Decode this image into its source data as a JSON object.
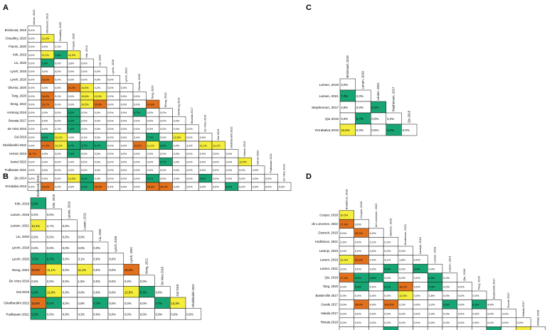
{
  "colors": {
    "green": "#17a673",
    "yellow": "#f5ee3e",
    "orange": "#e2711d",
    "white": "#ffffff"
  },
  "panels": [
    {
      "letter": "A",
      "rows": [
        "Bricknood, 2019",
        "Choudhry, 2020",
        "Fraenn, 2020",
        "Kirk, 2019",
        "Liu, 2020",
        "Lynch, 2018",
        "Lynch, 2020",
        "Oliveira, 2020",
        "Tang, 2020",
        "Wong, 2022",
        "Armitong 2019",
        "Bravata 2017",
        "De Vries 2016",
        "Gal 2019",
        "Ghahfarokhi 2022",
        "Heinen 2019",
        "Kamel 2022",
        "Pudkasam 2021",
        "Qiu 2014",
        "Yerrakalva 2019"
      ],
      "cols": [
        "Ashae, 2022",
        "Bricknood, 2019",
        "Choudhry, 2020",
        "Fraenn, 2020",
        "Kirk, 2019",
        "Liu, 2020",
        "Lynch, 2018",
        "Lynch, 2020",
        "Oliveira, 2020",
        "Tang, 2020",
        "Wong, 2022",
        "Armitong 2019",
        "Bravata 2017",
        "De Vries 2016",
        "Gal 2019",
        "Ghahfarokhi 2022",
        "Heinen 2019",
        "Kamel 2022",
        "Pudkasam 2021",
        "De Vries 2016"
      ],
      "cells": [
        [
          "0,0%"
        ],
        [
          "0,0%",
          "13,3%"
        ],
        [
          "0,0%",
          "0,0%",
          "2,1%"
        ],
        [
          "0,0%",
          "11,1%",
          "7,5%",
          "10,3%"
        ],
        [
          "0,0%",
          "5,9%",
          "0,0%",
          "3,8%",
          "0,0%"
        ],
        [
          "0,0%",
          "0,0%",
          "0,0%",
          "0,0%",
          "0,0%",
          "0,0%"
        ],
        [
          "0,0%",
          "18,2%",
          "0,0%",
          "0,0%",
          "0,0%",
          "0,0%",
          "0,0%"
        ],
        [
          "0,0%",
          "3,0%",
          "4,5%",
          "20,0%",
          "10,8%",
          "4,2%",
          "0,0%",
          "0,0%"
        ],
        [
          "0,0%",
          "18,0%",
          "5,1%",
          "0,0%",
          "10,6%",
          "11,5%",
          "0,0%",
          "0,0%",
          "0,0%"
        ],
        [
          "0,0%",
          "16,7%",
          "0,0%",
          "0,0%",
          "10,5%",
          "20,0%",
          "0,0%",
          "0,0%",
          "0,0%",
          "20,0%"
        ],
        [
          "0,0%",
          "0,0%",
          "0,0%",
          "5,3%",
          "0,0%",
          "0,0%",
          "0,0%",
          "0,0%",
          "5,7%",
          "0,0%",
          "0,0%"
        ],
        [
          "0,0%",
          "0,0%",
          "0,0%",
          "5,3%",
          "0,0%",
          "0,0%",
          "0,0%",
          "0,0%",
          "0,0%",
          "0,0%",
          "0,0%",
          "0,0%"
        ],
        [
          "0,0%",
          "0,0%",
          "2,1%",
          "7,0%",
          "0,0%",
          "0,0%",
          "0,0%",
          "0,0%",
          "0,0%",
          "0,0%",
          "0,0%",
          "0,0%",
          "0,0%"
        ],
        [
          "0,0%",
          "6,3%",
          "11,1%",
          "0,0%",
          "4,1%",
          "0,0%",
          "0,0%",
          "0,0%",
          "3,4%",
          "7,7%",
          "0,0%",
          "12,5%",
          "0,0%",
          "0,0%"
        ],
        [
          "0,0%",
          "17,2%",
          "12,2%",
          "6,7%",
          "7,7%",
          "6,7%",
          "0,0%",
          "0,0%",
          "11,2%",
          "11,1%",
          "6,8%",
          "0,0%",
          "3,3%",
          "11,1%",
          "11,1%"
        ],
        [
          "16,7%",
          "0,0%",
          "0,0%",
          "7,4%",
          "0,0%",
          "0,0%",
          "0,0%",
          "0,0%",
          "0,0%",
          "0,0%",
          "0,0%",
          "0,0%",
          "0,0%",
          "0,0%",
          "0,0%",
          "0,0%"
        ],
        [
          "0,0%",
          "0,0%",
          "0,0%",
          "3,4%",
          "0,0%",
          "0,0%",
          "0,0%",
          "0,0%",
          "0,0%",
          "0,0%",
          "6,7%",
          "0,0%",
          "0,0%",
          "0,0%",
          "0,0%",
          "0,0%",
          "12,5%"
        ],
        [
          "0,0%",
          "0,0%",
          "0,0%",
          "0,0%",
          "0,0%",
          "0,0%",
          "0,0%",
          "0,0%",
          "0,0%",
          "0,0%",
          "0,0%",
          "0,0%",
          "0,0%",
          "0,0%",
          "0,0%",
          "0,0%",
          "0,0%",
          "0,0%"
        ],
        [
          "0,0%",
          "0,0%",
          "0,0%",
          "14,3%",
          "9,1%",
          "0,0%",
          "0,0%",
          "0,0%",
          "0,0%",
          "9,1%",
          "0,0%",
          "0,0%",
          "0,0%",
          "6,5%",
          "0,0%",
          "0,0%",
          "0,0%",
          "0,0%",
          "0,0%"
        ],
        [
          "0,0%",
          "18,2%",
          "0,0%",
          "0,0%",
          "6,3%",
          "25,0%",
          "0,0%",
          "0,0%",
          "0,0%",
          "25,0%",
          "20,0%",
          "0,0%",
          "0,0%",
          "0,0%",
          "0,0%",
          "8,3%",
          "0,0%",
          "0,0%",
          "0,0%",
          "0,0%"
        ]
      ],
      "colors": [
        [
          "w"
        ],
        [
          "w",
          "y"
        ],
        [
          "w",
          "w",
          "w"
        ],
        [
          "w",
          "y",
          "g",
          "y"
        ],
        [
          "w",
          "g",
          "w",
          "w",
          "w"
        ],
        [
          "w",
          "w",
          "w",
          "w",
          "w",
          "w"
        ],
        [
          "w",
          "o",
          "w",
          "w",
          "w",
          "w",
          "w"
        ],
        [
          "w",
          "w",
          "w",
          "o",
          "y",
          "w",
          "w",
          "w"
        ],
        [
          "w",
          "o",
          "w",
          "w",
          "y",
          "y",
          "w",
          "w",
          "w"
        ],
        [
          "w",
          "o",
          "w",
          "w",
          "y",
          "o",
          "w",
          "w",
          "w",
          "o"
        ],
        [
          "w",
          "w",
          "w",
          "g",
          "w",
          "w",
          "w",
          "w",
          "g",
          "w",
          "w"
        ],
        [
          "w",
          "w",
          "w",
          "g",
          "w",
          "w",
          "w",
          "w",
          "w",
          "w",
          "w",
          "w"
        ],
        [
          "w",
          "w",
          "w",
          "g",
          "w",
          "w",
          "w",
          "w",
          "w",
          "w",
          "w",
          "w",
          "w"
        ],
        [
          "w",
          "g",
          "y",
          "w",
          "w",
          "w",
          "w",
          "w",
          "w",
          "g",
          "w",
          "y",
          "w",
          "w"
        ],
        [
          "w",
          "o",
          "y",
          "g",
          "g",
          "g",
          "w",
          "w",
          "o",
          "y",
          "g",
          "w",
          "w",
          "y",
          "y"
        ],
        [
          "o",
          "w",
          "w",
          "g",
          "w",
          "w",
          "w",
          "w",
          "w",
          "w",
          "w",
          "w",
          "w",
          "w",
          "w",
          "w"
        ],
        [
          "w",
          "w",
          "w",
          "w",
          "w",
          "w",
          "w",
          "w",
          "w",
          "w",
          "g",
          "w",
          "w",
          "w",
          "w",
          "w",
          "y"
        ],
        [
          "w",
          "w",
          "w",
          "w",
          "w",
          "w",
          "w",
          "w",
          "w",
          "w",
          "w",
          "w",
          "w",
          "w",
          "w",
          "w",
          "w",
          "w"
        ],
        [
          "w",
          "w",
          "w",
          "y",
          "g",
          "w",
          "w",
          "w",
          "w",
          "g",
          "w",
          "w",
          "w",
          "g",
          "w",
          "w",
          "w",
          "w",
          "w"
        ],
        [
          "w",
          "o",
          "w",
          "w",
          "g",
          "o",
          "w",
          "w",
          "w",
          "o",
          "o",
          "w",
          "w",
          "w",
          "w",
          "g",
          "w",
          "w",
          "w",
          "w"
        ]
      ]
    },
    {
      "letter": "B",
      "rows": [
        "Kirk, 2019",
        "Larsen, 2019",
        "Larsen, 2021",
        "Liu, 2020",
        "Lynch, 2018",
        "Lynch, 2020",
        "Wong, 2022",
        "De Vries 2016",
        "Gal 2019",
        "Ghahfarokhi 2022",
        "Pudkasam 2021"
      ],
      "cols": [
        "Bricknood, 2019",
        "Kirk, 2019",
        "Larsen, 2019",
        "Larsen, 2021",
        "Liu, 2020",
        "Lynch, 2018",
        "Lynch, 2020",
        "Wong, 2022",
        "De Vries 2016",
        "Gal 2019",
        "Ghahfarokhi 2022"
      ],
      "cells": [
        [
          "6,3%"
        ],
        [
          "0,0%",
          "0,0%"
        ],
        [
          "10,4%",
          "2,7%",
          "0,0%"
        ],
        [
          "0,0%",
          "0,0%",
          "0,0%",
          "0,0%"
        ],
        [
          "0,0%",
          "0,0%",
          "0,0%",
          "0,0%",
          "0,0%"
        ],
        [
          "7,7%",
          "6,7%",
          "0,0%",
          "3,1%",
          "0,0%",
          "0,0%"
        ],
        [
          "20,0%",
          "11,1%",
          "0,0%",
          "11,1%",
          "0,0%",
          "0,0%",
          "25,0%"
        ],
        [
          "0,0%",
          "0,0%",
          "0,0%",
          "1,5%",
          "0,0%",
          "0,0%",
          "0,0%",
          "0,0%"
        ],
        [
          "6,3%",
          "11,8%",
          "0,0%",
          "0,0%",
          "0,0%",
          "0,0%",
          "12,5%",
          "8,3%",
          "0,0%"
        ],
        [
          "15,8%",
          "9,1%",
          "0,0%",
          "2,8%",
          "7,7%",
          "0,0%",
          "0,0%",
          "0,0%",
          "7,7%",
          "13,3%"
        ],
        [
          "5,3%",
          "0,0%",
          "0,0%",
          "4,3%",
          "0,0%",
          "0,0%",
          "0,0%",
          "0,0%",
          "0,0%",
          "0,0%",
          "0,0%"
        ]
      ],
      "colors": [
        [
          "g"
        ],
        [
          "w",
          "w"
        ],
        [
          "y",
          "w",
          "w"
        ],
        [
          "w",
          "w",
          "w",
          "w"
        ],
        [
          "w",
          "w",
          "w",
          "w",
          "w"
        ],
        [
          "g",
          "g",
          "w",
          "w",
          "w",
          "w"
        ],
        [
          "o",
          "y",
          "w",
          "y",
          "w",
          "w",
          "o"
        ],
        [
          "w",
          "w",
          "w",
          "w",
          "w",
          "w",
          "w",
          "w"
        ],
        [
          "g",
          "y",
          "w",
          "w",
          "w",
          "w",
          "y",
          "g",
          "w"
        ],
        [
          "o",
          "g",
          "w",
          "w",
          "g",
          "w",
          "w",
          "w",
          "g",
          "y"
        ],
        [
          "g",
          "w",
          "w",
          "w",
          "w",
          "w",
          "w",
          "w",
          "w",
          "w",
          "w"
        ]
      ]
    },
    {
      "letter": "C",
      "rows": [
        "Larsen, 2019",
        "Larsen, 2021",
        "Stephenson, 2017",
        "Qiu 2015",
        "Yerrakalva 2019"
      ],
      "cols": [
        "Bricknood, 2019",
        "Larsen, 2019",
        "Larsen, 2021",
        "Stephenson, 2017",
        "Qiu 2015"
      ],
      "cells": [
        [
          "0,0%"
        ],
        [
          "7,3%",
          "0,0%"
        ],
        [
          "4,8%",
          "0,0%",
          "6,1%"
        ],
        [
          "0,0%",
          "6,7%",
          "0,0%",
          "3,4%"
        ],
        [
          "12,5%",
          "0,0%",
          "0,0%",
          "6,3%",
          "0,0%"
        ]
      ],
      "colors": [
        [
          "w"
        ],
        [
          "g",
          "w"
        ],
        [
          "w",
          "w",
          "g"
        ],
        [
          "w",
          "g",
          "w",
          "w"
        ],
        [
          "y",
          "w",
          "w",
          "g",
          "w"
        ]
      ]
    },
    {
      "letter": "D",
      "rows": [
        "Cooper, 2018",
        "de Loevenen, 2022",
        "Gierisch, 2015",
        "Hodkinson, 2021",
        "Laranjo, 2015",
        "Larsen, 2019",
        "Larsen, 2021",
        "Qiu, 2018",
        "Tang, 2020",
        "Baskerville 2017",
        "Goode 2017",
        "Hakala 2017",
        "Rintala 2018",
        "Vaes 2017"
      ],
      "cols": [
        "Braakhuis, 2019",
        "Cooper, 2018",
        "de Loevenen, 2022",
        "Gierisch, 2015",
        "Hodkinson, 2021",
        "Laranjo, 2015",
        "Larsen, 2019",
        "Larsen, 2021",
        "Qiu, 2018",
        "Tang, 2020",
        "Baskerville 2017",
        "Goode 2017",
        "Hakala 2017",
        "Rintala 2018"
      ],
      "cells": [
        [
          "10,0%"
        ],
        [
          "17,4%",
          "0,0%"
        ],
        [
          "0,0%",
          "25,0%",
          "0,0%"
        ],
        [
          "2,3%",
          "0,0%",
          "2,1%",
          "2,2%"
        ],
        [
          "0,0%",
          "0,0%",
          "0,0%",
          "0,0%",
          "0,0%"
        ],
        [
          "12,0%",
          "20,0%",
          "2,0%",
          "3,1%",
          "1,8%",
          "0,0%"
        ],
        [
          "0,0%",
          "0,0%",
          "0,0%",
          "5,6%",
          "0,0%",
          "6,4%",
          "0,0%"
        ],
        [
          "17,4%",
          "5,9%",
          "4,8%",
          "0,0%",
          "0,0%",
          "0,0%",
          "6,3%",
          "0,0%"
        ],
        [
          "0,0%",
          "5,3%",
          "0,0%",
          "6,1%",
          "18,2%",
          "0,0%",
          "5,4%",
          "0,0%",
          "0,0%"
        ],
        [
          "0,0%",
          "0,0%",
          "0,0%",
          "0,0%",
          "12,5%",
          "0,0%",
          "2,8%",
          "0,0%",
          "0,0%",
          "0,0%"
        ],
        [
          "0,0%",
          "25,0%",
          "0,0%",
          "100,0%",
          "2,2%",
          "0,0%",
          "3,2%",
          "5,6%",
          "0,0%",
          "6,3%",
          "4,8%"
        ],
        [
          "0,0%",
          "0,0%",
          "0,0%",
          "0,0%",
          "0,0%",
          "0,0%",
          "1,0%",
          "0,0%",
          "0,0%",
          "0,0%",
          "0,0%",
          "0,0%"
        ],
        [
          "0,0%",
          "0,0%",
          "0,0%",
          "0,0%",
          "0,0%",
          "0,0%",
          "0,0%",
          "0,0%",
          "0,0%",
          "0,0%",
          "0,0%",
          "0,0%",
          "0,0%"
        ],
        [
          "0,0%",
          "0,0%",
          "0,0%",
          "6,3%",
          "0,0%",
          "0,0%",
          "0,0%",
          "0,0%",
          "0,0%",
          "0,0%",
          "6,7%",
          "0,0%",
          "14,3%",
          "0,0%"
        ]
      ],
      "colors": [
        [
          "y"
        ],
        [
          "o",
          "w"
        ],
        [
          "w",
          "o",
          "w"
        ],
        [
          "w",
          "w",
          "w",
          "w"
        ],
        [
          "w",
          "w",
          "w",
          "w",
          "w"
        ],
        [
          "y",
          "o",
          "w",
          "w",
          "w",
          "w"
        ],
        [
          "w",
          "w",
          "w",
          "g",
          "w",
          "g",
          "w"
        ],
        [
          "o",
          "g",
          "g",
          "w",
          "w",
          "w",
          "g",
          "w"
        ],
        [
          "w",
          "g",
          "w",
          "g",
          "o",
          "w",
          "g",
          "w",
          "w"
        ],
        [
          "w",
          "w",
          "w",
          "w",
          "y",
          "w",
          "w",
          "w",
          "w",
          "w"
        ],
        [
          "w",
          "o",
          "w",
          "o",
          "w",
          "w",
          "w",
          "g",
          "w",
          "g",
          "w"
        ],
        [
          "w",
          "w",
          "w",
          "w",
          "w",
          "w",
          "w",
          "w",
          "w",
          "w",
          "w",
          "w"
        ],
        [
          "w",
          "w",
          "w",
          "w",
          "w",
          "w",
          "w",
          "w",
          "w",
          "w",
          "w",
          "w",
          "w"
        ],
        [
          "w",
          "w",
          "w",
          "g",
          "w",
          "w",
          "w",
          "w",
          "w",
          "w",
          "g",
          "w",
          "y",
          "w"
        ]
      ]
    }
  ]
}
